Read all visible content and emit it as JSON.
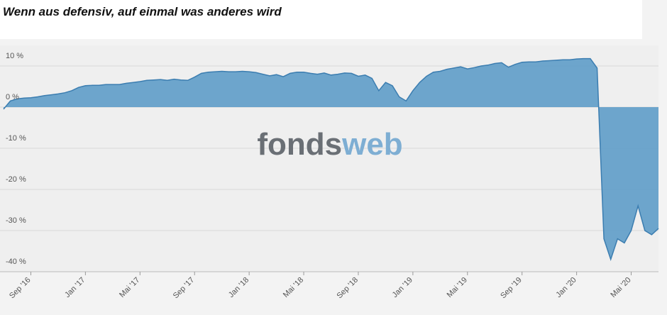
{
  "chart_data": {
    "type": "area",
    "title": "Wenn aus defensiv, auf einmal was anderes wird",
    "watermark_parts": [
      "fonds",
      "web"
    ],
    "categories": [
      null,
      null,
      null,
      null,
      "Sep '16",
      null,
      null,
      null,
      null,
      null,
      null,
      null,
      "Jan '17",
      null,
      null,
      null,
      null,
      null,
      null,
      null,
      "Mai '17",
      null,
      null,
      null,
      null,
      null,
      null,
      null,
      "Sep '17",
      null,
      null,
      null,
      null,
      null,
      null,
      null,
      "Jan '18",
      null,
      null,
      null,
      null,
      null,
      null,
      null,
      "Mai '18",
      null,
      null,
      null,
      null,
      null,
      null,
      null,
      "Sep '18",
      null,
      null,
      null,
      null,
      null,
      null,
      null,
      "Jan '19",
      null,
      null,
      null,
      null,
      null,
      null,
      null,
      "Mai '19",
      null,
      null,
      null,
      null,
      null,
      null,
      null,
      "Sep '19",
      null,
      null,
      null,
      null,
      null,
      null,
      null,
      "Jan '20",
      null,
      null,
      null,
      null,
      null,
      null,
      null,
      "Mai '20",
      null,
      null,
      null,
      null
    ],
    "values": [
      -0.5,
      1.5,
      2.0,
      2.2,
      2.3,
      2.5,
      2.8,
      3.0,
      3.2,
      3.5,
      4.0,
      4.8,
      5.2,
      5.3,
      5.3,
      5.5,
      5.5,
      5.5,
      5.8,
      6.0,
      6.2,
      6.5,
      6.6,
      6.7,
      6.5,
      6.8,
      6.6,
      6.5,
      7.3,
      8.2,
      8.5,
      8.6,
      8.7,
      8.6,
      8.6,
      8.7,
      8.6,
      8.4,
      8.0,
      7.6,
      7.9,
      7.4,
      8.2,
      8.5,
      8.5,
      8.2,
      8.0,
      8.3,
      7.8,
      8.0,
      8.3,
      8.2,
      7.5,
      7.8,
      7.0,
      4.0,
      6.0,
      5.2,
      2.5,
      1.5,
      4.0,
      6.0,
      7.5,
      8.5,
      8.7,
      9.2,
      9.5,
      9.8,
      9.3,
      9.6,
      10.0,
      10.2,
      10.6,
      10.8,
      9.7,
      10.4,
      10.9,
      11.0,
      11.0,
      11.2,
      11.3,
      11.4,
      11.5,
      11.5,
      11.7,
      11.8,
      11.8,
      9.5,
      -32,
      -37,
      -32,
      -33,
      -30,
      -24,
      -30,
      -31,
      -29.5
    ],
    "color": "#5e9cc8",
    "line_color": "#3b7db0",
    "ylim": [
      -40,
      15
    ],
    "yticks": [
      {
        "value": -40,
        "label": "-40 %"
      },
      {
        "value": -30,
        "label": "-30 %"
      },
      {
        "value": -20,
        "label": "-20 %"
      },
      {
        "value": -10,
        "label": "-10 %"
      },
      {
        "value": 0,
        "label": "0 %"
      },
      {
        "value": 10,
        "label": "10 %"
      }
    ],
    "grid": true
  }
}
